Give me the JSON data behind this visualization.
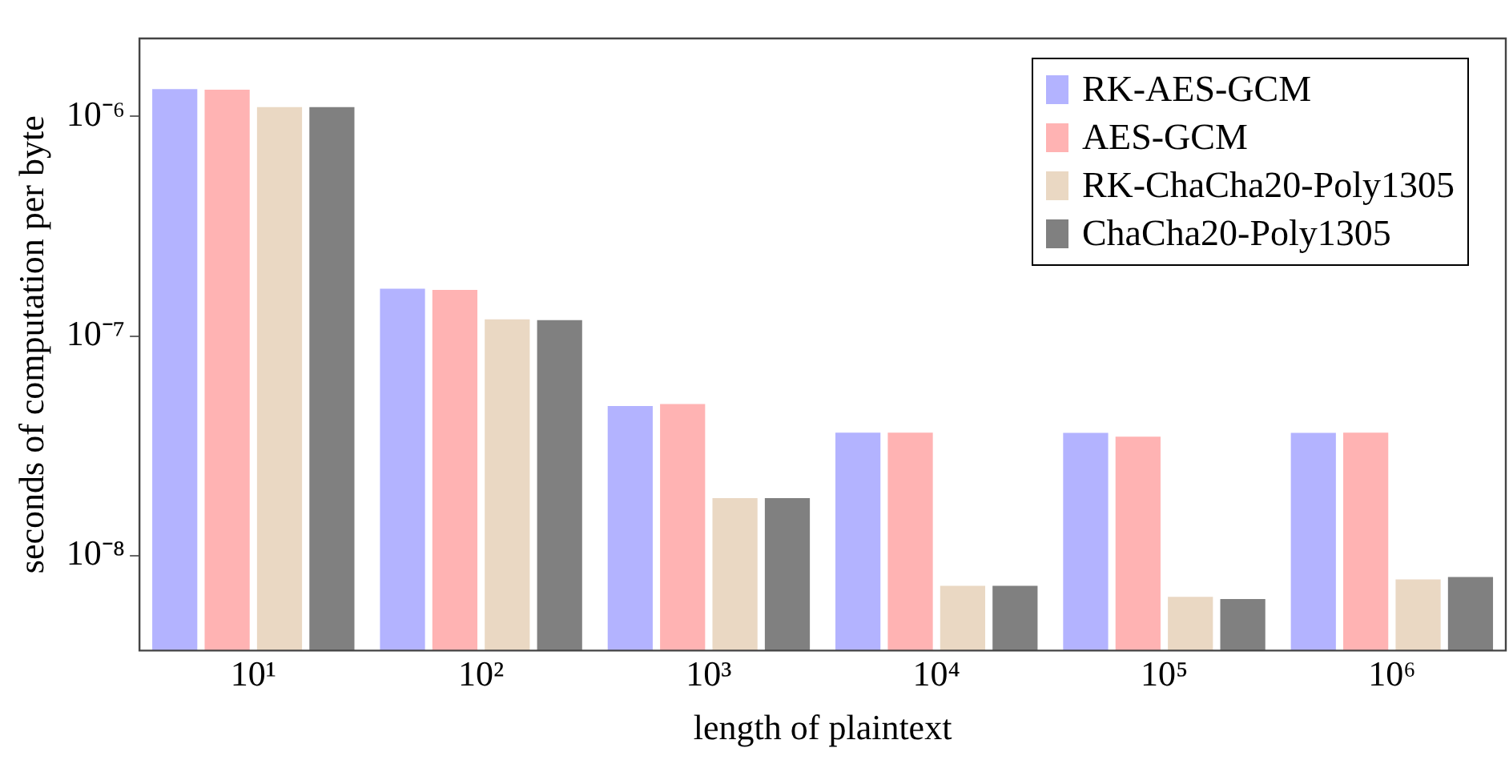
{
  "chart_data": {
    "type": "bar",
    "xlabel": "length of plaintext",
    "ylabel": "seconds of computation per byte",
    "categories": [
      "10¹",
      "10²",
      "10³",
      "10⁴",
      "10⁵",
      "10⁶"
    ],
    "series": [
      {
        "name": "RK-AES-GCM",
        "color": "#b3b3ff",
        "values": [
          1.33e-06,
          1.64e-07,
          4.8e-08,
          3.63e-08,
          3.62e-08,
          3.62e-08
        ]
      },
      {
        "name": "AES-GCM",
        "color": "#ffb3b3",
        "values": [
          1.32e-06,
          1.62e-07,
          4.9e-08,
          3.63e-08,
          3.48e-08,
          3.63e-08
        ]
      },
      {
        "name": "RK-ChaCha20-Poly1305",
        "color": "#ead8c3",
        "values": [
          1.1e-06,
          1.19e-07,
          1.83e-08,
          7.3e-09,
          6.5e-09,
          7.8e-09
        ]
      },
      {
        "name": "ChaCha20-Poly1305",
        "color": "#808080",
        "values": [
          1.1e-06,
          1.18e-07,
          1.83e-08,
          7.3e-09,
          6.35e-09,
          8e-09
        ]
      }
    ],
    "log": "y",
    "ylim": [
      3.7e-09,
      2.26e-06
    ],
    "yticks": [
      {
        "value": 1e-08,
        "label": "10⁻⁸"
      },
      {
        "value": 1e-07,
        "label": "10⁻⁷"
      },
      {
        "value": 1e-06,
        "label": "10⁻⁶"
      }
    ],
    "grid": false,
    "legend": "top right"
  }
}
